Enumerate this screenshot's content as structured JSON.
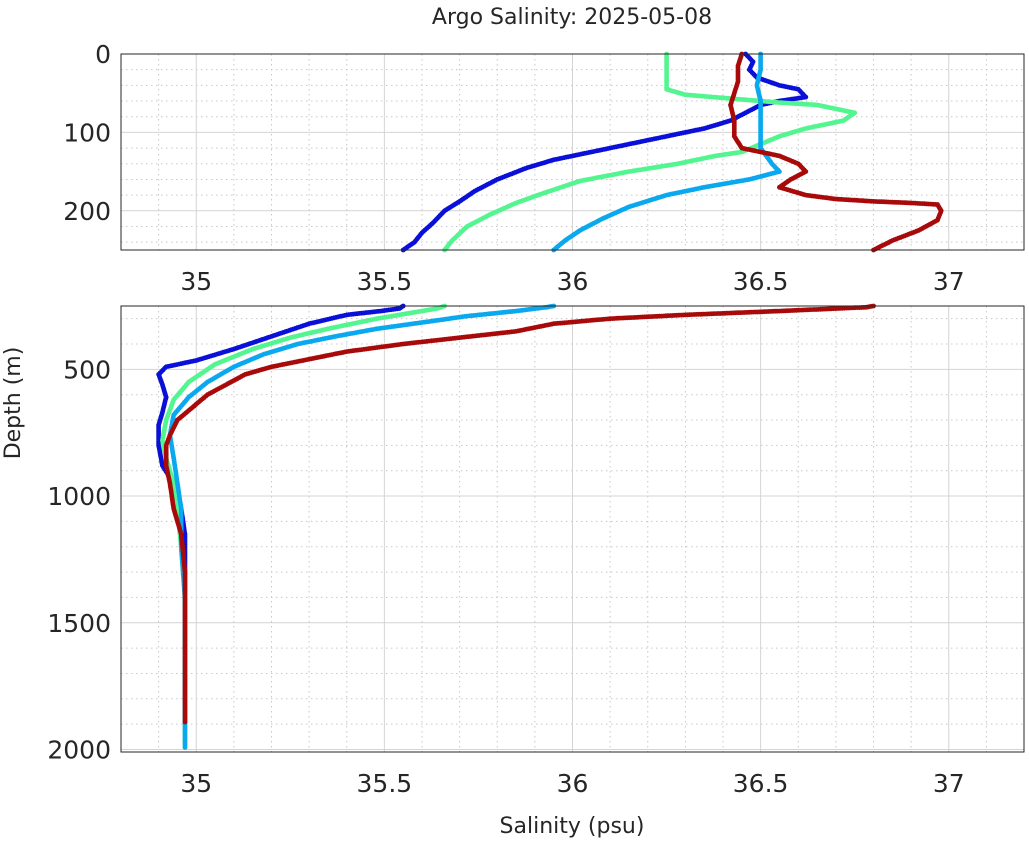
{
  "chart_data": {
    "type": "scatter",
    "title": "Argo Salinity: 2025-05-08",
    "xlabel": "Salinity (psu)",
    "ylabel": "Depth (m)",
    "grid": true,
    "legend": "none",
    "panels": [
      {
        "name": "upper",
        "xlim": [
          34.8,
          37.2
        ],
        "ylim": [
          0,
          250
        ],
        "y_reversed": true,
        "x_ticks": [
          35,
          35.5,
          36,
          36.5,
          37
        ],
        "x_tick_labels": [
          "35",
          "35.5",
          "36",
          "36.5",
          "37"
        ],
        "y_ticks": [
          0,
          100,
          200
        ],
        "y_tick_labels": [
          "0",
          "100",
          "200"
        ]
      },
      {
        "name": "lower",
        "xlim": [
          34.8,
          37.2
        ],
        "ylim": [
          250,
          2010
        ],
        "y_reversed": true,
        "x_ticks": [
          35,
          35.5,
          36,
          36.5,
          37
        ],
        "x_tick_labels": [
          "35",
          "35.5",
          "36",
          "36.5",
          "37"
        ],
        "y_ticks": [
          500,
          1000,
          1500,
          2000
        ],
        "y_tick_labels": [
          "500",
          "1000",
          "1500",
          "2000"
        ]
      }
    ],
    "series": [
      {
        "color": "#0a10d8",
        "points": [
          [
            36.46,
            0
          ],
          [
            36.48,
            10
          ],
          [
            36.47,
            20
          ],
          [
            36.49,
            30
          ],
          [
            36.55,
            40
          ],
          [
            36.6,
            45
          ],
          [
            36.62,
            55
          ],
          [
            36.55,
            60
          ],
          [
            36.5,
            65
          ],
          [
            36.46,
            75
          ],
          [
            36.42,
            85
          ],
          [
            36.35,
            95
          ],
          [
            36.25,
            105
          ],
          [
            36.15,
            115
          ],
          [
            36.05,
            125
          ],
          [
            35.95,
            135
          ],
          [
            35.88,
            145
          ],
          [
            35.8,
            160
          ],
          [
            35.74,
            175
          ],
          [
            35.7,
            188
          ],
          [
            35.66,
            200
          ],
          [
            35.63,
            215
          ],
          [
            35.6,
            228
          ],
          [
            35.58,
            240
          ],
          [
            35.55,
            250
          ],
          [
            35.54,
            260
          ],
          [
            35.49,
            270
          ],
          [
            35.4,
            285
          ],
          [
            35.3,
            320
          ],
          [
            35.2,
            370
          ],
          [
            35.1,
            420
          ],
          [
            35.0,
            465
          ],
          [
            34.92,
            490
          ],
          [
            34.9,
            520
          ],
          [
            34.91,
            560
          ],
          [
            34.92,
            610
          ],
          [
            34.91,
            670
          ],
          [
            34.9,
            720
          ],
          [
            34.9,
            800
          ],
          [
            34.91,
            880
          ],
          [
            34.94,
            950
          ],
          [
            34.96,
            1050
          ],
          [
            34.97,
            1150
          ],
          [
            34.97,
            1300
          ],
          [
            34.97,
            1500
          ],
          [
            34.97,
            1700
          ],
          [
            34.97,
            1900
          ]
        ]
      },
      {
        "color": "#52f58f",
        "points": [
          [
            36.25,
            0
          ],
          [
            36.25,
            20
          ],
          [
            36.25,
            45
          ],
          [
            36.3,
            52
          ],
          [
            36.45,
            58
          ],
          [
            36.55,
            62
          ],
          [
            36.65,
            65
          ],
          [
            36.75,
            75
          ],
          [
            36.72,
            85
          ],
          [
            36.62,
            95
          ],
          [
            36.55,
            105
          ],
          [
            36.5,
            115
          ],
          [
            36.45,
            125
          ],
          [
            36.38,
            130
          ],
          [
            36.28,
            140
          ],
          [
            36.15,
            150
          ],
          [
            36.02,
            162
          ],
          [
            35.92,
            178
          ],
          [
            35.85,
            190
          ],
          [
            35.78,
            205
          ],
          [
            35.72,
            220
          ],
          [
            35.68,
            238
          ],
          [
            35.66,
            250
          ],
          [
            35.64,
            260
          ],
          [
            35.58,
            275
          ],
          [
            35.48,
            300
          ],
          [
            35.35,
            340
          ],
          [
            35.25,
            375
          ],
          [
            35.15,
            420
          ],
          [
            35.05,
            480
          ],
          [
            34.98,
            550
          ],
          [
            34.94,
            620
          ],
          [
            34.92,
            700
          ],
          [
            34.91,
            780
          ],
          [
            34.92,
            850
          ],
          [
            34.94,
            950
          ],
          [
            34.95,
            1050
          ],
          [
            34.96,
            1200
          ],
          [
            34.97,
            1400
          ],
          [
            34.97,
            1600
          ],
          [
            34.97,
            1800
          ],
          [
            34.97,
            2000
          ]
        ]
      },
      {
        "color": "#0aa8ee",
        "points": [
          [
            36.5,
            0
          ],
          [
            36.5,
            20
          ],
          [
            36.49,
            40
          ],
          [
            36.5,
            60
          ],
          [
            36.5,
            80
          ],
          [
            36.5,
            100
          ],
          [
            36.5,
            120
          ],
          [
            36.53,
            140
          ],
          [
            36.55,
            150
          ],
          [
            36.47,
            160
          ],
          [
            36.35,
            170
          ],
          [
            36.25,
            180
          ],
          [
            36.15,
            195
          ],
          [
            36.08,
            210
          ],
          [
            36.02,
            225
          ],
          [
            35.98,
            238
          ],
          [
            35.95,
            250
          ],
          [
            35.93,
            255
          ],
          [
            35.85,
            270
          ],
          [
            35.72,
            290
          ],
          [
            35.6,
            315
          ],
          [
            35.48,
            340
          ],
          [
            35.37,
            370
          ],
          [
            35.27,
            400
          ],
          [
            35.18,
            440
          ],
          [
            35.1,
            490
          ],
          [
            35.03,
            550
          ],
          [
            34.98,
            610
          ],
          [
            34.94,
            680
          ],
          [
            34.93,
            760
          ],
          [
            34.94,
            850
          ],
          [
            34.95,
            950
          ],
          [
            34.96,
            1050
          ],
          [
            34.96,
            1200
          ],
          [
            34.97,
            1400
          ],
          [
            34.97,
            1600
          ],
          [
            34.97,
            1800
          ],
          [
            34.97,
            2000
          ]
        ]
      },
      {
        "color": "#a80a0a",
        "points": [
          [
            36.45,
            0
          ],
          [
            36.44,
            15
          ],
          [
            36.44,
            35
          ],
          [
            36.43,
            50
          ],
          [
            36.42,
            65
          ],
          [
            36.43,
            85
          ],
          [
            36.43,
            105
          ],
          [
            36.45,
            120
          ],
          [
            36.55,
            130
          ],
          [
            36.6,
            140
          ],
          [
            36.62,
            150
          ],
          [
            36.58,
            160
          ],
          [
            36.55,
            170
          ],
          [
            36.62,
            180
          ],
          [
            36.7,
            185
          ],
          [
            36.8,
            188
          ],
          [
            36.9,
            190
          ],
          [
            36.97,
            192
          ],
          [
            36.98,
            200
          ],
          [
            36.97,
            212
          ],
          [
            36.92,
            225
          ],
          [
            36.85,
            238
          ],
          [
            36.8,
            250
          ],
          [
            36.78,
            255
          ],
          [
            36.55,
            270
          ],
          [
            36.3,
            285
          ],
          [
            36.1,
            300
          ],
          [
            35.95,
            320
          ],
          [
            35.85,
            350
          ],
          [
            35.7,
            375
          ],
          [
            35.55,
            400
          ],
          [
            35.4,
            430
          ],
          [
            35.3,
            460
          ],
          [
            35.2,
            490
          ],
          [
            35.13,
            520
          ],
          [
            35.08,
            560
          ],
          [
            35.03,
            600
          ],
          [
            34.99,
            650
          ],
          [
            34.95,
            700
          ],
          [
            34.93,
            760
          ],
          [
            34.92,
            800
          ],
          [
            34.92,
            880
          ],
          [
            34.93,
            950
          ],
          [
            34.94,
            1050
          ],
          [
            34.96,
            1150
          ],
          [
            34.97,
            1300
          ],
          [
            34.97,
            1500
          ],
          [
            34.97,
            1700
          ],
          [
            34.97,
            1900
          ]
        ]
      }
    ]
  }
}
